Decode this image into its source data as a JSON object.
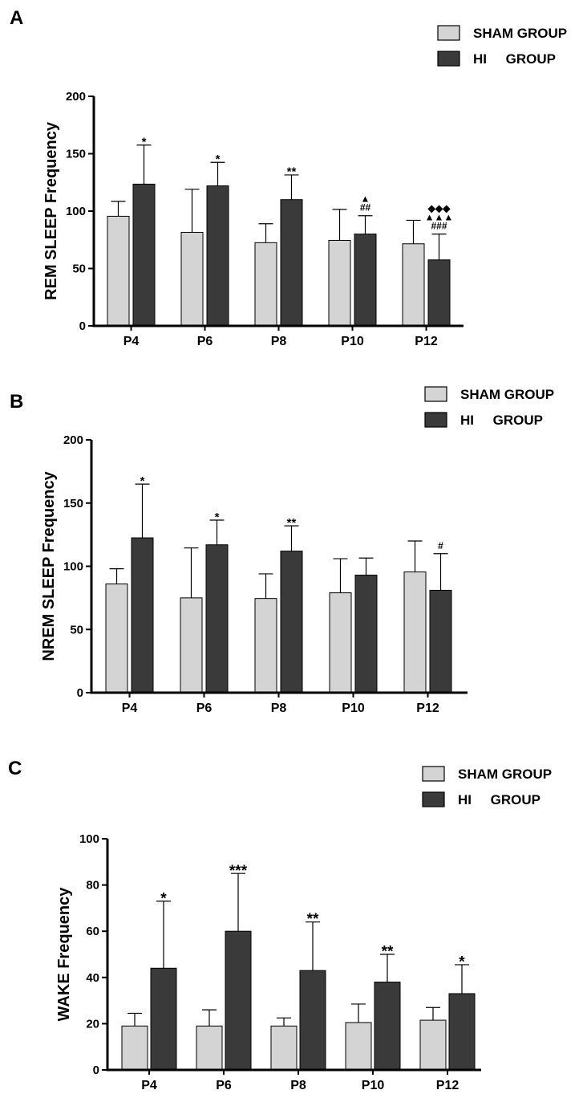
{
  "chart_data": [
    {
      "panel": "A",
      "type": "bar",
      "ylabel": "REM SLEEP Frequency",
      "xlabel": "",
      "ylim": [
        0,
        200
      ],
      "yticks": [
        0,
        50,
        100,
        150,
        200
      ],
      "categories": [
        "P4",
        "P6",
        "P8",
        "P10",
        "P12"
      ],
      "legend": [
        "SHAM GROUP",
        "HI     GROUP"
      ],
      "legend_position": "top-right",
      "series": [
        {
          "name": "SHAM GROUP",
          "color": "#d4d4d4",
          "values": [
            95.5,
            81.5,
            72.5,
            74.5,
            71.5
          ],
          "errors": [
            13,
            37.5,
            16.5,
            27,
            20.5
          ]
        },
        {
          "name": "HI GROUP",
          "color": "#3a3a3a",
          "values": [
            123.5,
            122,
            110,
            80,
            57.5
          ],
          "errors": [
            34,
            20.5,
            21.5,
            16,
            22.5
          ]
        }
      ],
      "annotations": [
        {
          "category": "P4",
          "series": 1,
          "lines": [
            "*"
          ]
        },
        {
          "category": "P6",
          "series": 1,
          "lines": [
            "*"
          ]
        },
        {
          "category": "P8",
          "series": 1,
          "lines": [
            "**"
          ]
        },
        {
          "category": "P10",
          "series": 1,
          "lines": [
            "##",
            "▲"
          ]
        },
        {
          "category": "P12",
          "series": 1,
          "lines": [
            "###",
            "▲▲▲",
            "◆◆◆"
          ]
        }
      ]
    },
    {
      "panel": "B",
      "type": "bar",
      "ylabel": "NREM SLEEP Frequency",
      "xlabel": "",
      "ylim": [
        0,
        200
      ],
      "yticks": [
        0,
        50,
        100,
        150,
        200
      ],
      "categories": [
        "P4",
        "P6",
        "P8",
        "P10",
        "P12"
      ],
      "legend": [
        "SHAM GROUP",
        "HI     GROUP"
      ],
      "legend_position": "top-right",
      "series": [
        {
          "name": "SHAM GROUP",
          "color": "#d4d4d4",
          "values": [
            86,
            75,
            74.5,
            79,
            95.5
          ],
          "errors": [
            12,
            39.5,
            19.5,
            27,
            24.5
          ]
        },
        {
          "name": "HI GROUP",
          "color": "#3a3a3a",
          "values": [
            122.5,
            117,
            112,
            93,
            81
          ],
          "errors": [
            42.5,
            19.5,
            20,
            13.5,
            29
          ]
        }
      ],
      "annotations": [
        {
          "category": "P4",
          "series": 1,
          "lines": [
            "*"
          ]
        },
        {
          "category": "P6",
          "series": 1,
          "lines": [
            "*"
          ]
        },
        {
          "category": "P8",
          "series": 1,
          "lines": [
            "**"
          ]
        },
        {
          "category": "P12",
          "series": 1,
          "lines": [
            "#"
          ]
        }
      ]
    },
    {
      "panel": "C",
      "type": "bar",
      "ylabel": "WAKE Frequency",
      "xlabel": "",
      "ylim": [
        0,
        100
      ],
      "yticks": [
        0,
        20,
        40,
        60,
        80,
        100
      ],
      "categories": [
        "P4",
        "P6",
        "P8",
        "P10",
        "P12"
      ],
      "legend": [
        "SHAM GROUP",
        "HI     GROUP"
      ],
      "legend_position": "top-right",
      "series": [
        {
          "name": "SHAM GROUP",
          "color": "#d4d4d4",
          "values": [
            19,
            19,
            19,
            20.5,
            21.5
          ],
          "errors": [
            5.5,
            7,
            3.5,
            8,
            5.5
          ]
        },
        {
          "name": "HI GROUP",
          "color": "#3a3a3a",
          "values": [
            44,
            60,
            43,
            38,
            33
          ],
          "errors": [
            29,
            25,
            21,
            12,
            12.5
          ]
        }
      ],
      "annotations": [
        {
          "category": "P4",
          "series": 1,
          "lines": [
            "*"
          ]
        },
        {
          "category": "P6",
          "series": 1,
          "lines": [
            "***"
          ]
        },
        {
          "category": "P8",
          "series": 1,
          "lines": [
            "**"
          ]
        },
        {
          "category": "P10",
          "series": 1,
          "lines": [
            "**"
          ]
        },
        {
          "category": "P12",
          "series": 1,
          "lines": [
            "*"
          ]
        }
      ]
    }
  ]
}
